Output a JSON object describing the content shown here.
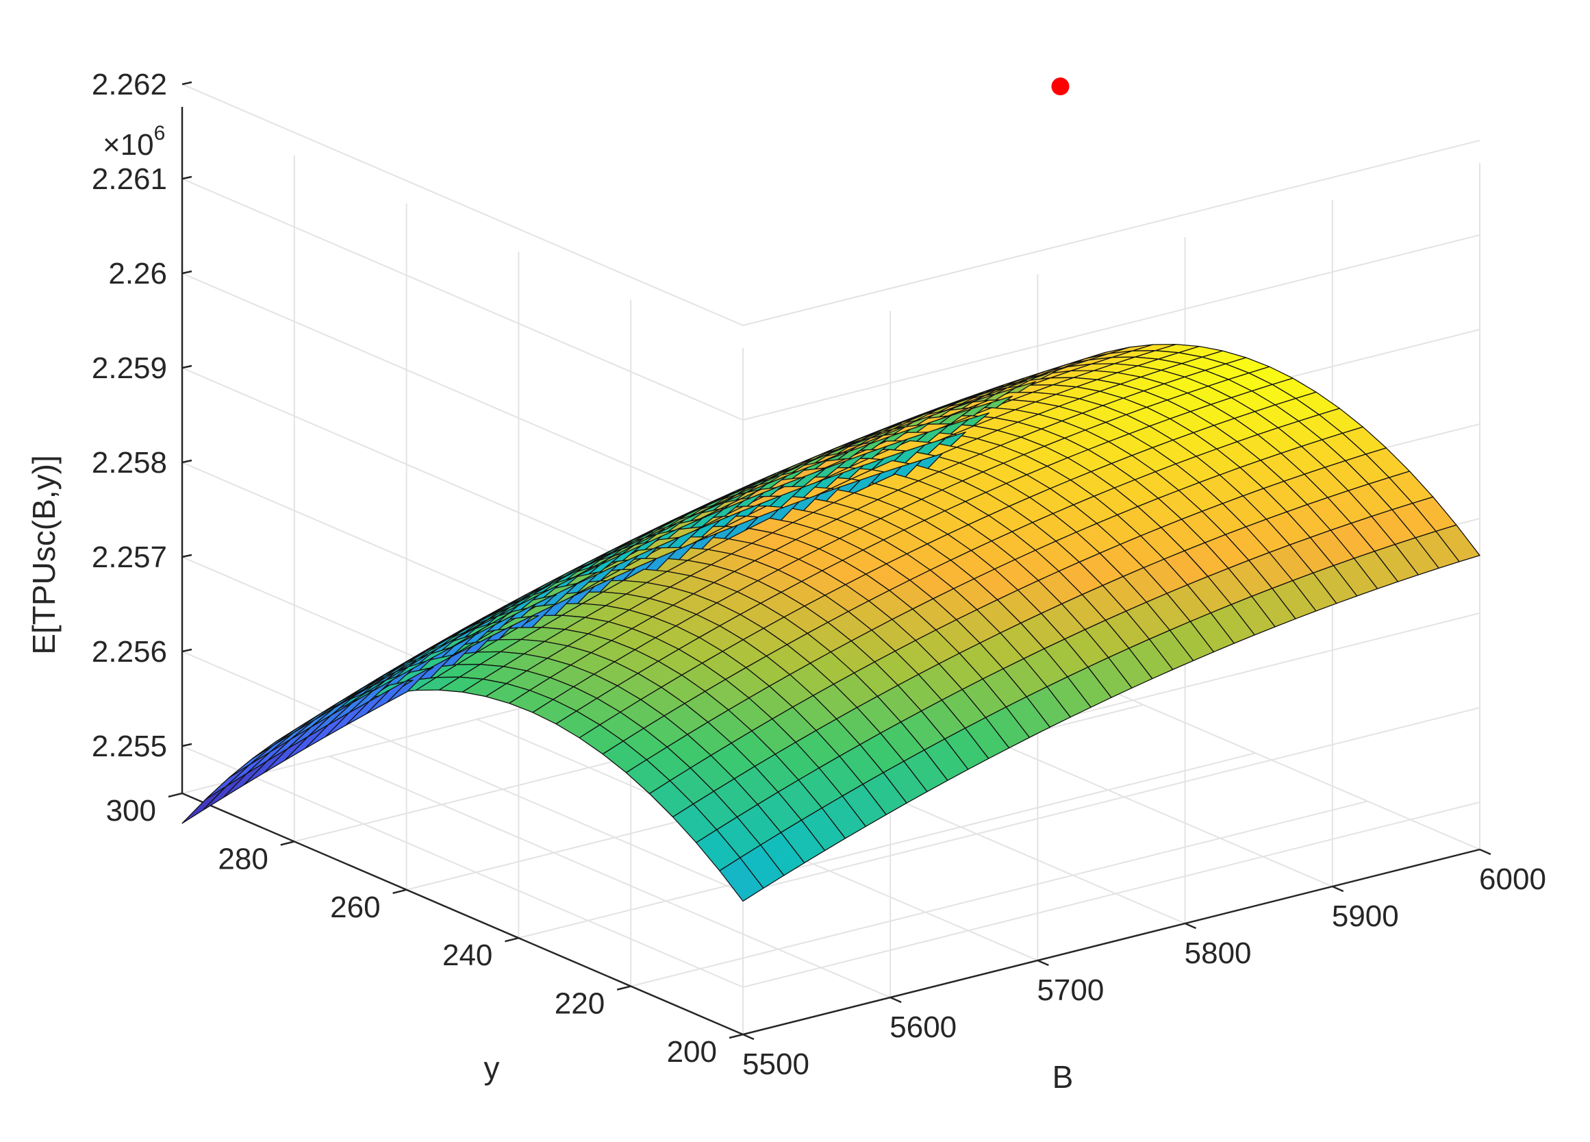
{
  "chart_data": {
    "type": "surface",
    "title": "",
    "xlabel": "B",
    "ylabel": "y",
    "zlabel": "E[TPUsc(B,y)]",
    "z_multiplier_label": "×10",
    "z_multiplier_exponent": "6",
    "xlim": [
      5500,
      6000
    ],
    "ylim": [
      200,
      300
    ],
    "zlim": [
      2.2545,
      2.2628
    ],
    "x_ticks": [
      5500,
      5600,
      5700,
      5800,
      5900,
      6000
    ],
    "y_ticks": [
      200,
      220,
      240,
      260,
      280,
      300
    ],
    "z_ticks": [
      2.255,
      2.256,
      2.257,
      2.258,
      2.259,
      2.26,
      2.261,
      2.262
    ],
    "x_tick_labels": [
      "5500",
      "5600",
      "5700",
      "5800",
      "5900",
      "6000"
    ],
    "y_tick_labels": [
      "200",
      "220",
      "240",
      "260",
      "280",
      "300"
    ],
    "z_tick_labels": [
      "2.255",
      "2.256",
      "2.257",
      "2.258",
      "2.259",
      "2.26",
      "2.261",
      "2.262"
    ],
    "grid": true,
    "colormap": "parula",
    "surface": {
      "description": "quadratic surface in B and y, peak near B=5860, y=238",
      "x_range": [
        5500,
        6000
      ],
      "y_range": [
        200,
        300
      ],
      "x_divisions": 36,
      "y_divisions": 24,
      "corner_values": {
        "B5500_y300": 2.2546,
        "B5500_y200": 2.2559,
        "B6000_y300": 2.2573,
        "B6000_y200": 2.2562,
        "B6000_ymax": 2.2627,
        "B5500_ymax": 2.2597
      }
    },
    "optimum_point": {
      "B": 5860,
      "y": 238,
      "z": 2.26215,
      "color": "#ff0000"
    }
  }
}
